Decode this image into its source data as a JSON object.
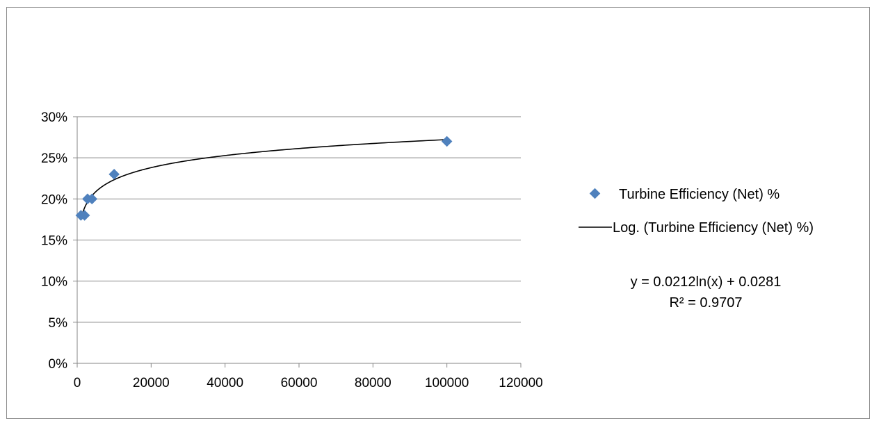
{
  "chart_data": {
    "type": "scatter",
    "title": "",
    "xlabel": "",
    "ylabel": "",
    "xlim": [
      0,
      120000
    ],
    "ylim": [
      0,
      0.3
    ],
    "x_ticks": [
      "0",
      "20000",
      "40000",
      "60000",
      "80000",
      "100000",
      "120000"
    ],
    "y_ticks": [
      "0%",
      "5%",
      "10%",
      "15%",
      "20%",
      "25%",
      "30%"
    ],
    "grid": "horizontal",
    "legend_position": "right",
    "series": [
      {
        "name": "Turbine Efficiency (Net) %",
        "marker": "diamond",
        "color": "#4f81bd",
        "x": [
          1000,
          2000,
          2800,
          4000,
          10000,
          100000
        ],
        "y": [
          0.18,
          0.18,
          0.2,
          0.2,
          0.23,
          0.27
        ]
      }
    ],
    "trendline": {
      "name": "Log. (Turbine Efficiency (Net) %)",
      "type": "logarithmic",
      "a": 0.0212,
      "b": 0.0281,
      "x_range": [
        1000,
        100000
      ],
      "color": "#000000",
      "equation": "y = 0.0212ln(x) + 0.0281",
      "r_squared": "R² = 0.9707"
    }
  }
}
